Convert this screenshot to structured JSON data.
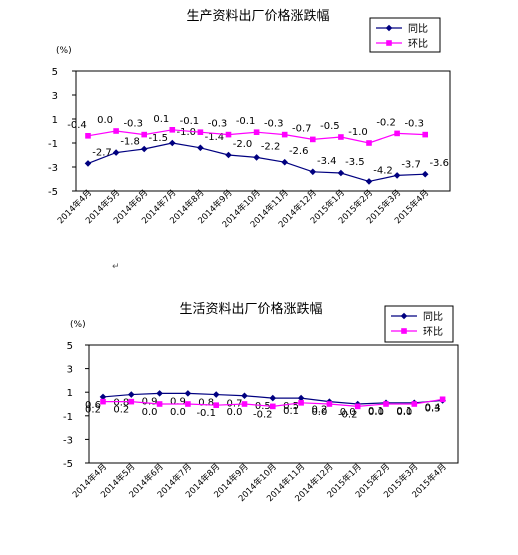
{
  "chart_data": [
    {
      "type": "line",
      "title": "生产资料出厂价格涨跌幅",
      "ylabel": "(%)",
      "ylim": [
        -5,
        5
      ],
      "yticks": [
        5,
        3,
        1,
        -1,
        -3,
        -5
      ],
      "grid": false,
      "legend_position": "top-right",
      "categories": [
        "2014年4月",
        "2014年5月",
        "2014年6月",
        "2014年7月",
        "2014年8月",
        "2014年9月",
        "2014年10月",
        "2014年11月",
        "2014年12月",
        "2015年1月",
        "2015年2月",
        "2015年3月",
        "2015年4月"
      ],
      "series": [
        {
          "name": "同比",
          "color": "#000080",
          "marker": "diamond",
          "values": [
            -2.7,
            -1.8,
            -1.5,
            -1.0,
            -1.4,
            -2.0,
            -2.2,
            -2.6,
            -3.4,
            -3.5,
            -4.2,
            -3.7,
            -3.6
          ],
          "labels": [
            "-2.7",
            "-1.8",
            "-1.5",
            "-1.0",
            "-1.4",
            "-2.0",
            "-2.2",
            "-2.6",
            "-3.4",
            "-3.5",
            "-4.2",
            "-3.7",
            "-3.6"
          ]
        },
        {
          "name": "环比",
          "color": "#ff00ff",
          "marker": "square",
          "values": [
            -0.4,
            0.0,
            -0.3,
            0.1,
            -0.1,
            -0.3,
            -0.1,
            -0.3,
            -0.7,
            -0.5,
            -1.0,
            -0.2,
            -0.3
          ],
          "labels": [
            "-0.4",
            "0.0",
            "-0.3",
            "0.1",
            "-0.1",
            "-0.3",
            "-0.1",
            "-0.3",
            "-0.7",
            "-0.5",
            "-1.0",
            "-0.2",
            "-0.3"
          ]
        }
      ]
    },
    {
      "type": "line",
      "title": "生活资料出厂价格涨跌幅",
      "ylabel": "(%)",
      "ylim": [
        -5,
        5
      ],
      "yticks": [
        5,
        3,
        1,
        -1,
        -3,
        -5
      ],
      "grid": false,
      "legend_position": "top-right",
      "categories": [
        "2014年4月",
        "2014年5月",
        "2014年6月",
        "2014年7月",
        "2014年8月",
        "2014年9月",
        "2014年10月",
        "2014年11月",
        "2014年12月",
        "2015年1月",
        "2015年2月",
        "2015年3月",
        "2015年4月"
      ],
      "series": [
        {
          "name": "同比",
          "color": "#000080",
          "marker": "diamond",
          "values": [
            0.6,
            0.8,
            0.9,
            0.9,
            0.8,
            0.7,
            0.5,
            0.5,
            0.2,
            0.0,
            0.1,
            0.1,
            0.3
          ],
          "labels": [
            "0.6",
            "0.8",
            "0.9",
            "0.9",
            "0.8",
            "0.7",
            "0.5",
            "0.5",
            "0.2",
            "0.0",
            "0.1",
            "0.1",
            "0.3"
          ]
        },
        {
          "name": "环比",
          "color": "#ff00ff",
          "marker": "square",
          "values": [
            0.2,
            0.2,
            0.0,
            0.0,
            -0.1,
            0.0,
            -0.2,
            0.1,
            0.0,
            -0.2,
            0.0,
            0.0,
            0.4
          ],
          "labels": [
            "0.2",
            "0.2",
            "0.0",
            "0.0",
            "-0.1",
            "0.0",
            "-0.2",
            "0.1",
            "0.0",
            "-0.2",
            "0.0",
            "0.0",
            "0.4"
          ]
        }
      ]
    }
  ],
  "paragraph_mark": "↵"
}
